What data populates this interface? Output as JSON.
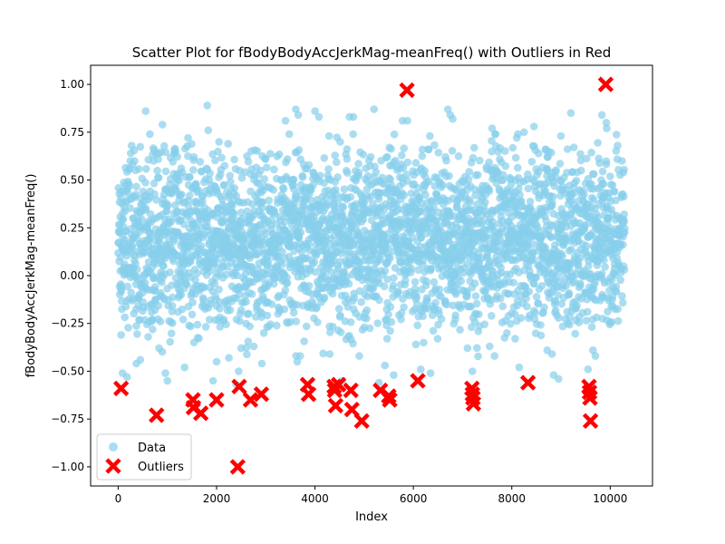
{
  "chart_data": {
    "type": "scatter",
    "title": "Scatter Plot for fBodyBodyAccJerkMag-meanFreq() with Outliers in Red",
    "xlabel": "Index",
    "ylabel": "fBodyBodyAccJerkMag-meanFreq()",
    "xlim": [
      -560,
      10860
    ],
    "ylim": [
      -1.1,
      1.1
    ],
    "x_ticks": [
      0,
      2000,
      4000,
      6000,
      8000,
      10000
    ],
    "x_tick_labels": [
      "0",
      "2000",
      "4000",
      "6000",
      "8000",
      "10000"
    ],
    "y_ticks": [
      -1.0,
      -0.75,
      -0.5,
      -0.25,
      0.0,
      0.25,
      0.5,
      0.75,
      1.0
    ],
    "y_tick_labels": [
      "−1.00",
      "−0.75",
      "−0.50",
      "−0.25",
      "0.00",
      "0.25",
      "0.50",
      "0.75",
      "1.00"
    ],
    "grid": false,
    "legend": {
      "position": "lower left",
      "entries": [
        "Data",
        "Outliers"
      ]
    },
    "series": [
      {
        "name": "Data",
        "marker": "circle",
        "color": "#87CEEB",
        "count": 10299,
        "x_range": [
          0,
          10298
        ],
        "y_core_range": [
          -0.3,
          0.7
        ],
        "points": [
          [
            60,
            -0.31
          ],
          [
            90,
            -0.51
          ],
          [
            120,
            0.36
          ],
          [
            180,
            -0.53
          ],
          [
            310,
            -0.12
          ],
          [
            370,
            -0.46
          ],
          [
            450,
            -0.44
          ],
          [
            560,
            0.86
          ],
          [
            610,
            -0.32
          ],
          [
            680,
            -0.24
          ],
          [
            830,
            -0.38
          ],
          [
            900,
            0.79
          ],
          [
            960,
            -0.51
          ],
          [
            1000,
            -0.55
          ],
          [
            1350,
            -0.48
          ],
          [
            1420,
            0.72
          ],
          [
            1540,
            0.62
          ],
          [
            1810,
            0.89
          ],
          [
            1830,
            0.76
          ],
          [
            2000,
            -0.45
          ],
          [
            2050,
            0.7
          ],
          [
            2250,
            -0.43
          ],
          [
            2400,
            -0.57
          ],
          [
            2450,
            -0.5
          ],
          [
            2500,
            -0.38
          ],
          [
            2920,
            -0.46
          ],
          [
            2960,
            -0.3
          ],
          [
            3400,
            0.81
          ],
          [
            3610,
            0.87
          ],
          [
            3660,
            0.84
          ],
          [
            3640,
            -0.45
          ],
          [
            3700,
            -0.42
          ],
          [
            4000,
            0.86
          ],
          [
            4080,
            0.83
          ],
          [
            4300,
            -0.41
          ],
          [
            4550,
            -0.55
          ],
          [
            4650,
            0.61
          ],
          [
            4700,
            0.83
          ],
          [
            4780,
            0.83
          ],
          [
            4900,
            -0.42
          ],
          [
            5000,
            -0.22
          ],
          [
            5200,
            0.87
          ],
          [
            5300,
            -0.56
          ],
          [
            5420,
            -0.47
          ],
          [
            5600,
            -0.52
          ],
          [
            5780,
            0.81
          ],
          [
            5880,
            0.81
          ],
          [
            6050,
            -0.36
          ],
          [
            6150,
            -0.49
          ],
          [
            6350,
            -0.51
          ],
          [
            6700,
            0.87
          ],
          [
            6750,
            0.84
          ],
          [
            6800,
            0.82
          ],
          [
            7100,
            -0.38
          ],
          [
            7200,
            -0.5
          ],
          [
            7550,
            -0.37
          ],
          [
            7600,
            0.77
          ],
          [
            7650,
            -0.42
          ],
          [
            7900,
            -0.3
          ],
          [
            8100,
            0.72
          ],
          [
            8150,
            -0.48
          ],
          [
            8250,
            0.75
          ],
          [
            8450,
            0.78
          ],
          [
            8720,
            -0.39
          ],
          [
            8820,
            -0.41
          ],
          [
            8850,
            -0.52
          ],
          [
            8950,
            -0.54
          ],
          [
            9000,
            0.73
          ],
          [
            9200,
            0.85
          ],
          [
            9550,
            -0.49
          ],
          [
            9650,
            -0.39
          ],
          [
            9700,
            -0.42
          ],
          [
            9830,
            0.84
          ],
          [
            9920,
            0.8
          ],
          [
            9930,
            0.77
          ],
          [
            10050,
            -0.16
          ],
          [
            10150,
            0.68
          ]
        ]
      },
      {
        "name": "Outliers",
        "marker": "X",
        "color": "#FF0000",
        "points": [
          [
            60,
            -0.59
          ],
          [
            780,
            -0.73
          ],
          [
            1520,
            -0.65
          ],
          [
            1530,
            -0.69
          ],
          [
            1680,
            -0.72
          ],
          [
            2000,
            -0.65
          ],
          [
            2430,
            -1.0
          ],
          [
            2460,
            -0.58
          ],
          [
            2690,
            -0.65
          ],
          [
            2910,
            -0.62
          ],
          [
            3850,
            -0.57
          ],
          [
            3870,
            -0.62
          ],
          [
            4390,
            -0.58
          ],
          [
            4400,
            -0.6
          ],
          [
            4420,
            -0.68
          ],
          [
            4480,
            -0.57
          ],
          [
            4730,
            -0.6
          ],
          [
            4750,
            -0.7
          ],
          [
            4950,
            -0.76
          ],
          [
            5330,
            -0.6
          ],
          [
            5500,
            -0.63
          ],
          [
            5520,
            -0.65
          ],
          [
            5870,
            0.97
          ],
          [
            6090,
            -0.55
          ],
          [
            7190,
            -0.59
          ],
          [
            7200,
            -0.62
          ],
          [
            7210,
            -0.64
          ],
          [
            7220,
            -0.67
          ],
          [
            8330,
            -0.56
          ],
          [
            9570,
            -0.58
          ],
          [
            9580,
            -0.61
          ],
          [
            9590,
            -0.64
          ],
          [
            9600,
            -0.76
          ],
          [
            9910,
            1.0
          ]
        ]
      }
    ]
  }
}
